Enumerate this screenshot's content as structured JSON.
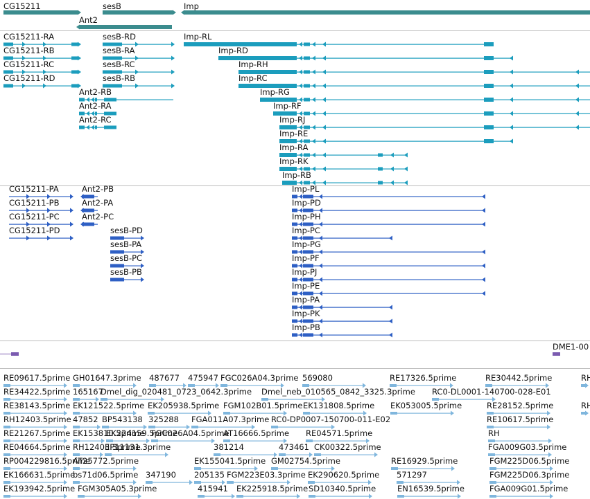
{
  "colors": {
    "gene": "#3b8c8e",
    "mrna": "#1b9dbd",
    "protein": "#2e5fc4",
    "insertion": "#7b5bb0",
    "cdna": "#7fb6dd",
    "separator": "#bdbdbd"
  },
  "genes": [
    "CG15211",
    "sesB",
    "Ant2",
    "Imp"
  ],
  "transcripts": [
    "CG15211-RA",
    "CG15211-RB",
    "CG15211-RC",
    "CG15211-RD",
    "sesB-RD",
    "sesB-RA",
    "sesB-RC",
    "sesB-RB",
    "Ant2-RB",
    "Ant2-RA",
    "Ant2-RC",
    "Imp-RL",
    "Imp-RD",
    "Imp-RH",
    "Imp-RC",
    "Imp-RG",
    "Imp-RF",
    "Imp-RJ",
    "Imp-RE",
    "Imp-RA",
    "Imp-RK",
    "Imp-RB"
  ],
  "proteins": [
    "CG15211-PA",
    "CG15211-PB",
    "CG15211-PC",
    "CG15211-PD",
    "Ant2-PB",
    "Ant2-PA",
    "Ant2-PC",
    "sesB-PD",
    "sesB-PA",
    "sesB-PC",
    "sesB-PB",
    "Imp-PL",
    "Imp-PD",
    "Imp-PH",
    "Imp-PC",
    "Imp-PG",
    "Imp-PF",
    "Imp-PJ",
    "Imp-PE",
    "Imp-PA",
    "Imp-PK",
    "Imp-PB"
  ],
  "insertion": "DME1-00",
  "cdna_rows": [
    [
      "RE09617.5prime",
      "GH01647.3prime",
      "487677",
      "475947",
      "FGC026A04.3prime",
      "569080",
      "RE17326.5prime",
      "RE30442.5prime",
      "RH"
    ],
    [
      "RE34422.5prime",
      "165167",
      "Dmel_dig_020481_0723_0642.3prime",
      "Dmel_neb_010565_0842_3325.3prime",
      "RC0-DL0001-140700-028-E01"
    ],
    [
      "RE38143.5prime",
      "EK121522.5prime",
      "EK205938.5prime",
      "FGM102B01.5prime",
      "EK131808.5prime",
      "EK053005.5prime",
      "RE28152.5prime",
      "RH"
    ],
    [
      "RH12403.5prime",
      "47852",
      "BP543138",
      "325288",
      "FGA011A07.3prime",
      "RC0-DP0007-150700-011-E02",
      "RE10617.5prime"
    ],
    [
      "RE21267.5prime",
      "EK153810.5prime",
      "EK224159.5prime",
      "FGC026A04.5prime",
      "AT16666.5prime",
      "RE04571.5prime",
      "RH"
    ],
    [
      "RE04664.5prime",
      "RH12403.3prime",
      "EP11131.3prime",
      "381214",
      "473461",
      "CK00322.5prime",
      "FGA009G03.5prime"
    ],
    [
      "RP004229816.5prime",
      "AT25772.5prime",
      "EK155041.5prime",
      "GM02754.5prime",
      "RE16929.5prime",
      "FGM225D06.5prime"
    ],
    [
      "EK166631.5prime",
      "bs71d06.5prime",
      "347190",
      "205135",
      "FGM223E03.3prime",
      "EK290620.5prime",
      "571297",
      "FGM225D06.3prime"
    ],
    [
      "EK193942.5prime",
      "FGM305A05.3prime",
      "415941",
      "EK225918.5prime",
      "SD10340.5prime",
      "EN16539.5prime",
      "FGA009G01.5prime"
    ]
  ]
}
